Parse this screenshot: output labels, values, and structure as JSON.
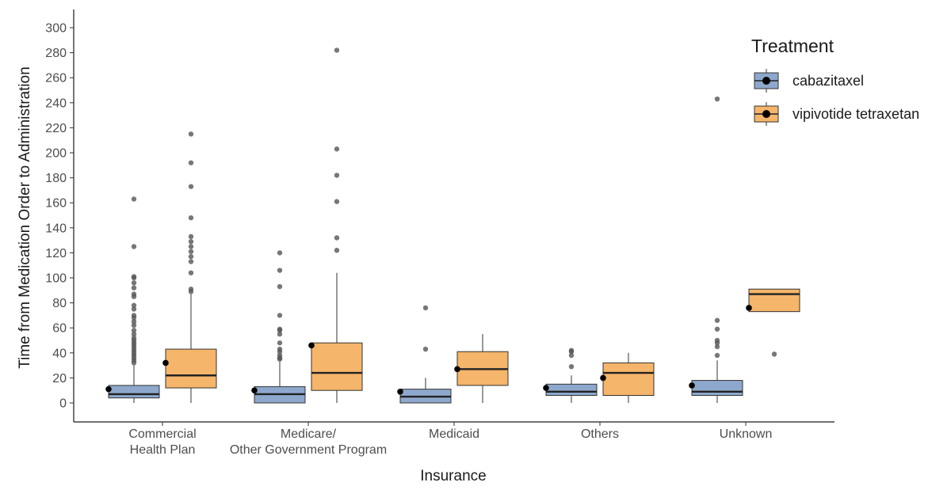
{
  "chart_data": {
    "type": "box",
    "xlabel": "Insurance",
    "ylabel": "Time from Medication Order to Administration",
    "ylim": [
      -15,
      315
    ],
    "yticks": [
      0,
      20,
      40,
      60,
      80,
      100,
      120,
      140,
      160,
      180,
      200,
      220,
      240,
      260,
      280,
      300
    ],
    "grid": false,
    "legend": {
      "title": "Treatment",
      "position": "top-right",
      "entries": [
        {
          "name": "cabazitaxel",
          "color": "#8DA8CC"
        },
        {
          "name": "vipivotide tetraxetan",
          "color": "#F5B56A"
        }
      ]
    },
    "categories": [
      {
        "lines": [
          "Commercial",
          "Health Plan"
        ]
      },
      {
        "lines": [
          "Medicare/",
          "Other Government Program"
        ]
      },
      {
        "lines": [
          "Medicaid"
        ]
      },
      {
        "lines": [
          "Others"
        ]
      },
      {
        "lines": [
          "Unknown"
        ]
      }
    ],
    "series": [
      {
        "name": "cabazitaxel",
        "color": "#8DA8CC",
        "boxes": [
          {
            "whisker_low": 0,
            "q1": 4,
            "median": 7,
            "q3": 14,
            "whisker_high": 30,
            "mean": 11,
            "outliers": [
              32,
              34,
              36,
              38,
              40,
              42,
              44,
              46,
              48,
              50,
              52,
              55,
              58,
              62,
              65,
              68,
              70,
              75,
              78,
              85,
              87,
              92,
              96,
              100,
              101,
              125,
              163
            ]
          },
          {
            "whisker_low": 0,
            "q1": 0,
            "median": 7,
            "q3": 13,
            "whisker_high": 33,
            "mean": 10,
            "outliers": [
              35,
              36,
              38,
              41,
              43,
              48,
              55,
              58,
              59,
              70,
              93,
              106,
              120
            ]
          },
          {
            "whisker_low": 0,
            "q1": 0,
            "median": 5,
            "q3": 11,
            "whisker_high": 20,
            "mean": 9,
            "outliers": [
              43,
              76
            ]
          },
          {
            "whisker_low": 0,
            "q1": 6,
            "median": 9,
            "q3": 15,
            "whisker_high": 22,
            "mean": 12,
            "outliers": [
              29,
              38,
              41,
              42
            ]
          },
          {
            "whisker_low": 0,
            "q1": 6,
            "median": 9,
            "q3": 18,
            "whisker_high": 34,
            "mean": 14,
            "outliers": [
              38,
              45,
              48,
              50,
              59,
              66,
              243
            ]
          }
        ]
      },
      {
        "name": "vipivotide tetraxetan",
        "color": "#F5B56A",
        "boxes": [
          {
            "whisker_low": 0,
            "q1": 12,
            "median": 22,
            "q3": 43,
            "whisker_high": 87,
            "mean": 32,
            "outliers": [
              89,
              91,
              104,
              113,
              117,
              121,
              125,
              129,
              133,
              148,
              173,
              192,
              215
            ]
          },
          {
            "whisker_low": 0,
            "q1": 10,
            "median": 24,
            "q3": 48,
            "whisker_high": 104,
            "mean": 46,
            "outliers": [
              122,
              132,
              161,
              182,
              203,
              282
            ]
          },
          {
            "whisker_low": 0,
            "q1": 14,
            "median": 27,
            "q3": 41,
            "whisker_high": 55,
            "mean": 27,
            "outliers": []
          },
          {
            "whisker_low": 0,
            "q1": 6,
            "median": 24,
            "q3": 32,
            "whisker_high": 40,
            "mean": 20,
            "outliers": []
          },
          {
            "whisker_low": 73,
            "q1": 73,
            "median": 87,
            "q3": 91,
            "whisker_high": 91,
            "mean": 76,
            "outliers": [
              39
            ]
          }
        ]
      }
    ]
  }
}
